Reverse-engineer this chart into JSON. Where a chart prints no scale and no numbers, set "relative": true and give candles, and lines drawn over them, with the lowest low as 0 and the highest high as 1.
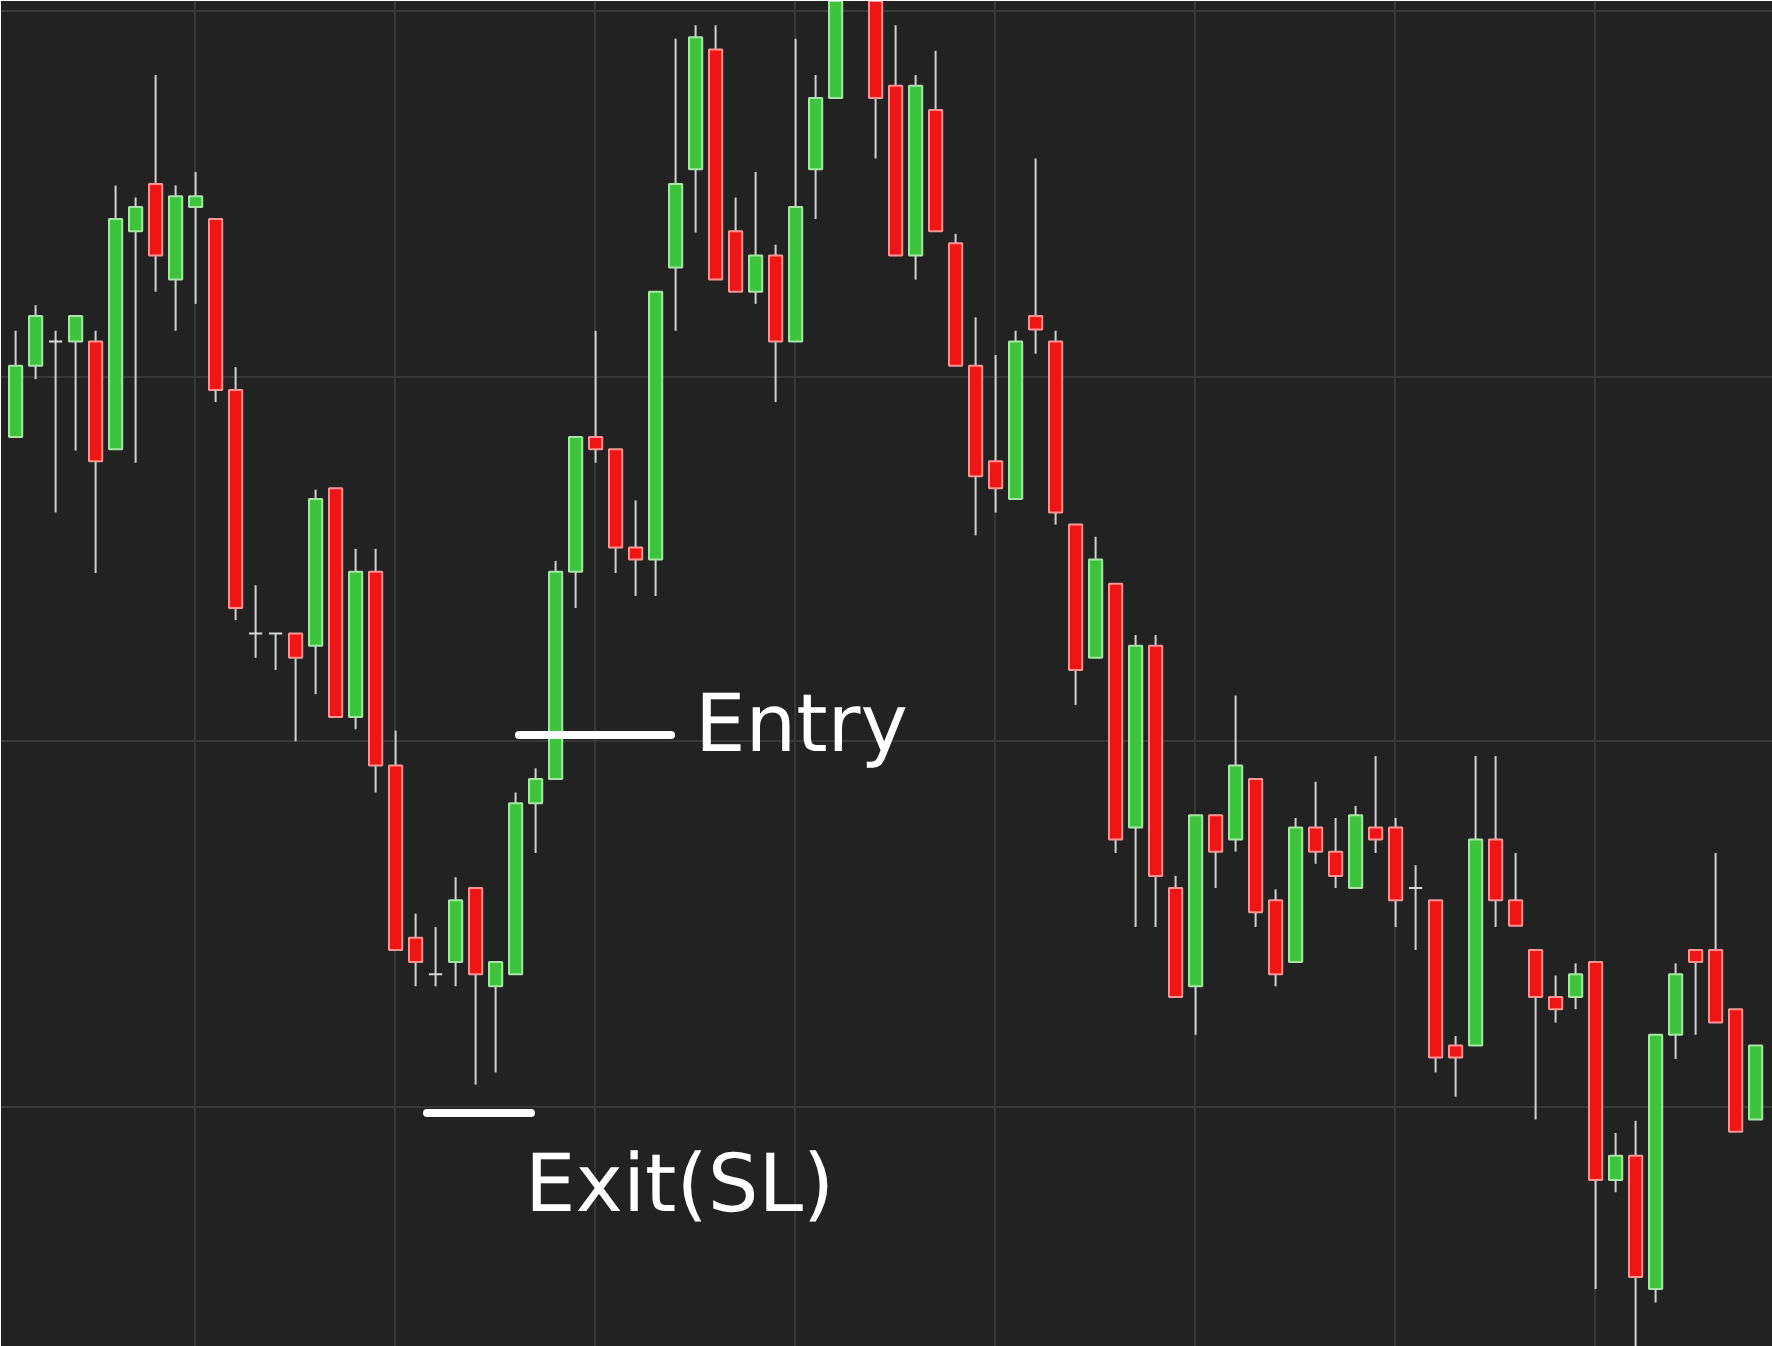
{
  "chart_data": {
    "type": "candlestick",
    "relative": true,
    "grid": true,
    "categories": [
      null,
      null,
      null,
      null,
      null,
      null,
      null,
      null,
      null,
      null,
      null,
      null,
      null,
      null,
      null,
      null,
      null,
      null,
      null,
      null,
      null,
      null,
      null,
      null,
      null,
      null,
      null,
      null,
      null,
      null,
      null,
      null,
      null,
      null,
      null,
      null,
      null,
      null,
      null,
      null,
      null,
      null,
      null,
      null,
      null,
      null,
      null,
      null,
      null,
      null,
      null,
      null,
      null,
      null,
      null,
      null,
      null,
      null,
      null,
      null,
      null,
      null,
      null,
      null,
      null,
      null,
      null,
      null,
      null,
      null,
      null,
      null,
      null,
      null,
      null,
      null,
      null,
      null,
      null,
      null,
      null,
      null,
      null,
      null,
      null,
      null,
      null,
      null
    ],
    "ohlc": [
      [
        0.676,
        0.755,
        0.676,
        0.729
      ],
      [
        0.729,
        0.774,
        0.719,
        0.766
      ],
      [
        0.747,
        0.755,
        0.62,
        0.747
      ],
      [
        0.747,
        0.766,
        0.666,
        0.766
      ],
      [
        0.747,
        0.755,
        0.575,
        0.658
      ],
      [
        0.667,
        0.863,
        0.667,
        0.838
      ],
      [
        0.829,
        0.854,
        0.657,
        0.847
      ],
      [
        0.864,
        0.945,
        0.784,
        0.811
      ],
      [
        0.793,
        0.863,
        0.755,
        0.855
      ],
      [
        0.847,
        0.873,
        0.775,
        0.855
      ],
      [
        0.838,
        0.838,
        0.702,
        0.711
      ],
      [
        0.711,
        0.728,
        0.54,
        0.549
      ],
      [
        0.53,
        0.566,
        0.512,
        0.53
      ],
      [
        0.53,
        0.53,
        0.503,
        0.53
      ],
      [
        0.53,
        0.53,
        0.45,
        0.512
      ],
      [
        0.521,
        0.637,
        0.485,
        0.63
      ],
      [
        0.638,
        0.638,
        0.468,
        0.468
      ],
      [
        0.468,
        0.593,
        0.459,
        0.576
      ],
      [
        0.576,
        0.593,
        0.412,
        0.432
      ],
      [
        0.432,
        0.458,
        0.295,
        0.295
      ],
      [
        0.304,
        0.322,
        0.268,
        0.286
      ],
      [
        0.277,
        0.312,
        0.268,
        0.277
      ],
      [
        0.286,
        0.349,
        0.268,
        0.332
      ],
      [
        0.341,
        0.341,
        0.195,
        0.277
      ],
      [
        0.268,
        0.286,
        0.204,
        0.286
      ],
      [
        0.277,
        0.412,
        0.277,
        0.404
      ],
      [
        0.404,
        0.43,
        0.367,
        0.422
      ],
      [
        0.422,
        0.584,
        0.422,
        0.576
      ],
      [
        0.576,
        0.676,
        0.549,
        0.676
      ],
      [
        0.676,
        0.755,
        0.657,
        0.667
      ],
      [
        0.667,
        0.667,
        0.575,
        0.594
      ],
      [
        0.594,
        0.629,
        0.558,
        0.585
      ],
      [
        0.585,
        0.784,
        0.558,
        0.784
      ],
      [
        0.802,
        0.972,
        0.755,
        0.864
      ],
      [
        0.875,
        0.982,
        0.828,
        0.973
      ],
      [
        0.964,
        0.982,
        0.793,
        0.793
      ],
      [
        0.829,
        0.854,
        0.784,
        0.784
      ],
      [
        0.784,
        0.873,
        0.775,
        0.811
      ],
      [
        0.811,
        0.819,
        0.702,
        0.747
      ],
      [
        0.747,
        0.972,
        0.747,
        0.847
      ],
      [
        0.875,
        0.945,
        0.838,
        0.928
      ],
      [
        0.928,
        1,
        0.928,
        1
      ],
      null,
      [
        1,
        1,
        0.883,
        0.928
      ],
      [
        0.937,
        0.982,
        0.811,
        0.811
      ],
      [
        0.811,
        0.945,
        0.793,
        0.937
      ],
      [
        0.919,
        0.963,
        0.829,
        0.829
      ],
      [
        0.82,
        0.827,
        0.729,
        0.729
      ],
      [
        0.729,
        0.765,
        0.603,
        0.647
      ],
      [
        0.658,
        0.737,
        0.62,
        0.638
      ],
      [
        0.63,
        0.755,
        0.63,
        0.747
      ],
      [
        0.766,
        0.883,
        0.738,
        0.756
      ],
      [
        0.747,
        0.755,
        0.611,
        0.62
      ],
      [
        0.611,
        0.611,
        0.477,
        0.503
      ],
      [
        0.512,
        0.602,
        0.512,
        0.585
      ],
      [
        0.567,
        0.567,
        0.367,
        0.377
      ],
      [
        0.386,
        0.529,
        0.312,
        0.521
      ],
      [
        0.521,
        0.529,
        0.312,
        0.35
      ],
      [
        0.341,
        0.35,
        0.26,
        0.26
      ],
      [
        0.268,
        0.395,
        0.232,
        0.395
      ],
      [
        0.395,
        0.395,
        0.341,
        0.368
      ],
      [
        0.377,
        0.484,
        0.368,
        0.432
      ],
      [
        0.422,
        0.422,
        0.312,
        0.323
      ],
      [
        0.332,
        0.34,
        0.268,
        0.277
      ],
      [
        0.286,
        0.393,
        0.286,
        0.386
      ],
      [
        0.386,
        0.42,
        0.359,
        0.368
      ],
      [
        0.368,
        0.393,
        0.341,
        0.35
      ],
      [
        0.341,
        0.402,
        0.341,
        0.395
      ],
      [
        0.386,
        0.439,
        0.367,
        0.377
      ],
      [
        0.386,
        0.393,
        0.312,
        0.332
      ],
      [
        0.341,
        0.358,
        0.295,
        0.341
      ],
      [
        0.332,
        0.332,
        0.204,
        0.215
      ],
      [
        0.224,
        0.231,
        0.186,
        0.215
      ],
      [
        0.224,
        0.439,
        0.224,
        0.377
      ],
      [
        0.377,
        0.439,
        0.312,
        0.332
      ],
      [
        0.332,
        0.367,
        0.313,
        0.313
      ],
      [
        0.295,
        0.295,
        0.169,
        0.26
      ],
      [
        0.26,
        0.276,
        0.241,
        0.251
      ],
      [
        0.26,
        0.285,
        0.251,
        0.277
      ],
      [
        0.286,
        0.286,
        0.043,
        0.124
      ],
      [
        0.124,
        0.159,
        0.115,
        0.142
      ],
      [
        0.142,
        0.168,
        0,
        0.052
      ],
      [
        0.043,
        0.232,
        0.033,
        0.232
      ],
      [
        0.232,
        0.285,
        0.214,
        0.277
      ],
      [
        0.295,
        0.295,
        0.232,
        0.286
      ],
      [
        0.295,
        0.367,
        0.241,
        0.241
      ],
      [
        0.251,
        0.251,
        0.16,
        0.16
      ],
      [
        0.169,
        0.224,
        0.169,
        0.224
      ]
    ],
    "colors": [
      "#3ec43c",
      "#3ec43c",
      "#d8d8d8",
      "#3ec43c",
      "#ee1515",
      "#3ec43c",
      "#3ec43c",
      "#ee1515",
      "#3ec43c",
      "#3ec43c",
      "#ee1515",
      "#ee1515",
      "#d8d8d8",
      "#d8d8d8",
      "#ee1515",
      "#3ec43c",
      "#ee1515",
      "#3ec43c",
      "#ee1515",
      "#ee1515",
      "#ee1515",
      "#d8d8d8",
      "#3ec43c",
      "#ee1515",
      "#3ec43c",
      "#3ec43c",
      "#3ec43c",
      "#3ec43c",
      "#3ec43c",
      "#ee1515",
      "#ee1515",
      "#ee1515",
      "#3ec43c",
      "#3ec43c",
      "#3ec43c",
      "#ee1515",
      "#ee1515",
      "#3ec43c",
      "#ee1515",
      "#3ec43c",
      "#3ec43c",
      "#3ec43c",
      null,
      "#ee1515",
      "#ee1515",
      "#3ec43c",
      "#ee1515",
      "#ee1515",
      "#ee1515",
      "#ee1515",
      "#3ec43c",
      "#ee1515",
      "#ee1515",
      "#ee1515",
      "#3ec43c",
      "#ee1515",
      "#3ec43c",
      "#ee1515",
      "#ee1515",
      "#3ec43c",
      "#ee1515",
      "#3ec43c",
      "#ee1515",
      "#ee1515",
      "#3ec43c",
      "#ee1515",
      "#ee1515",
      "#3ec43c",
      "#ee1515",
      "#ee1515",
      "#d8d8d8",
      "#ee1515",
      "#ee1515",
      "#3ec43c",
      "#ee1515",
      "#ee1515",
      "#ee1515",
      "#ee1515",
      "#3ec43c",
      "#ee1515",
      "#3ec43c",
      "#ee1515",
      "#3ec43c",
      "#3ec43c",
      "#ee1515",
      "#ee1515",
      "#ee1515",
      "#3ec43c"
    ],
    "annotations": [
      "Entry",
      "Exit(SL)"
    ]
  }
}
